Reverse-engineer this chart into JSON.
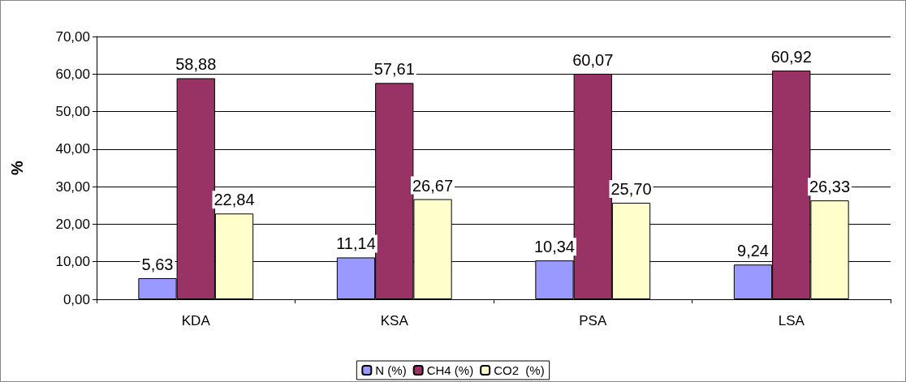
{
  "chart_data": {
    "type": "bar",
    "ylabel": "%",
    "categories": [
      "KDA",
      "KSA",
      "PSA",
      "LSA"
    ],
    "series": [
      {
        "name": "N (%)",
        "color": "#9999ff",
        "values": [
          5.63,
          11.14,
          10.34,
          9.24
        ],
        "value_labels": [
          "5,63",
          "11,14",
          "10,34",
          "9,24"
        ]
      },
      {
        "name": "CH4 (%)",
        "color": "#993366",
        "values": [
          58.88,
          57.61,
          60.07,
          60.92
        ],
        "value_labels": [
          "58,88",
          "57,61",
          "60,07",
          "60,92"
        ]
      },
      {
        "name": "CO2  (%)",
        "color": "#ffffcc",
        "values": [
          22.84,
          26.67,
          25.7,
          26.33
        ],
        "value_labels": [
          "22,84",
          "26,67",
          "25,70",
          "26,33"
        ]
      }
    ],
    "ylim": [
      0,
      70
    ],
    "yticks": [
      {
        "value": 0,
        "label": "0,00"
      },
      {
        "value": 10,
        "label": "10,00"
      },
      {
        "value": 20,
        "label": "20,00"
      },
      {
        "value": 30,
        "label": "30,00"
      },
      {
        "value": 40,
        "label": "40,00"
      },
      {
        "value": 50,
        "label": "50,00"
      },
      {
        "value": 60,
        "label": "60,00"
      },
      {
        "value": 70,
        "label": "70,00"
      }
    ],
    "grid": "y",
    "legend": "bottom"
  }
}
